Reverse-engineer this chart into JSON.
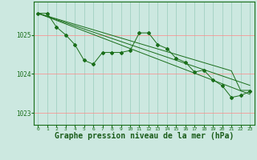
{
  "background_color": "#cce8e0",
  "grid_color_h": "#ff9999",
  "grid_color_v": "#99ccbb",
  "line_color": "#1a6e1a",
  "marker_color": "#1a6e1a",
  "xlabel": "Graphe pression niveau de la mer (hPa)",
  "xlabel_color": "#1a5c1a",
  "xlabel_fontsize": 7,
  "ylim": [
    1022.7,
    1025.85
  ],
  "xlim": [
    -0.5,
    23.5
  ],
  "yticks": [
    1023,
    1024,
    1025
  ],
  "xticks": [
    0,
    1,
    2,
    3,
    4,
    5,
    6,
    7,
    8,
    9,
    10,
    11,
    12,
    13,
    14,
    15,
    16,
    17,
    18,
    19,
    20,
    21,
    22,
    23
  ],
  "hours": [
    0,
    1,
    2,
    3,
    4,
    5,
    6,
    7,
    8,
    9,
    10,
    11,
    12,
    13,
    14,
    15,
    16,
    17,
    18,
    19,
    20,
    21,
    22,
    23
  ],
  "pressure_obs": [
    1025.55,
    1025.55,
    1025.2,
    1025.0,
    1024.75,
    1024.35,
    1024.25,
    1024.55,
    1024.55,
    1024.55,
    1024.6,
    1025.05,
    1025.05,
    1024.75,
    1024.65,
    1024.4,
    1024.3,
    1024.05,
    1024.1,
    1023.85,
    1023.7,
    1023.4,
    1023.45,
    1023.55
  ],
  "pressure_trend1": [
    1025.55,
    1025.47,
    1025.39,
    1025.31,
    1025.23,
    1025.15,
    1025.07,
    1024.99,
    1024.91,
    1024.83,
    1024.75,
    1024.67,
    1024.59,
    1024.51,
    1024.43,
    1024.35,
    1024.27,
    1024.19,
    1024.11,
    1024.03,
    1023.95,
    1023.87,
    1023.79,
    1023.71
  ],
  "pressure_trend2": [
    1025.55,
    1025.46,
    1025.37,
    1025.28,
    1025.19,
    1025.1,
    1025.01,
    1024.92,
    1024.83,
    1024.74,
    1024.65,
    1024.56,
    1024.47,
    1024.38,
    1024.29,
    1024.2,
    1024.11,
    1024.02,
    1023.93,
    1023.84,
    1023.75,
    1023.66,
    1023.57,
    1023.48
  ],
  "pressure_trend3": [
    1025.55,
    1025.48,
    1025.41,
    1025.34,
    1025.27,
    1025.2,
    1025.13,
    1025.06,
    1024.99,
    1024.92,
    1024.85,
    1024.78,
    1024.71,
    1024.64,
    1024.57,
    1024.5,
    1024.43,
    1024.36,
    1024.29,
    1024.22,
    1024.15,
    1024.08,
    1023.58,
    1023.58
  ]
}
